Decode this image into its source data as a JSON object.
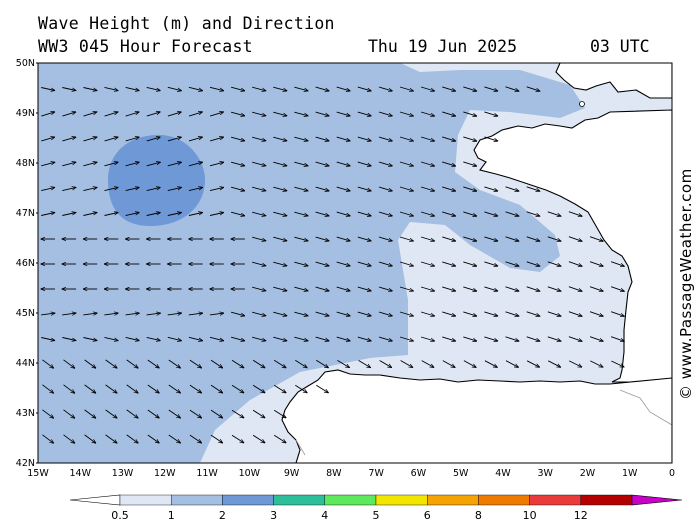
{
  "header": {
    "title": "Wave Height (m) and Direction",
    "model_line": "WW3 045 Hour Forecast",
    "date": "Thu 19 Jun 2025",
    "time": "03 UTC"
  },
  "watermark": "© www.PassageWeather.com",
  "map": {
    "lat_range": [
      42,
      50
    ],
    "lon_range": [
      -15,
      0
    ],
    "lat_labels": [
      "50N",
      "49N",
      "48N",
      "47N",
      "46N",
      "45N",
      "44N",
      "43N",
      "42N"
    ],
    "lon_labels": [
      "15W",
      "14W",
      "13W",
      "12W",
      "11W",
      "10W",
      "9W",
      "8W",
      "7W",
      "6W",
      "5W",
      "4W",
      "3W",
      "2W",
      "1W",
      "0"
    ],
    "land_color": "#ffffff",
    "coast_color": "#000000",
    "arrow_color": "#000000"
  },
  "legend": {
    "labels": [
      "0.5",
      "1",
      "2",
      "3",
      "4",
      "5",
      "6",
      "8",
      "10",
      "12"
    ],
    "colors": [
      "#dfe7f4",
      "#a5bfe2",
      "#6f98d6",
      "#2dbf9a",
      "#5ee85e",
      "#f2e600",
      "#f5a300",
      "#f07a00",
      "#ea3a3a",
      "#b40000",
      "#c800c8"
    ],
    "units": "m"
  }
}
